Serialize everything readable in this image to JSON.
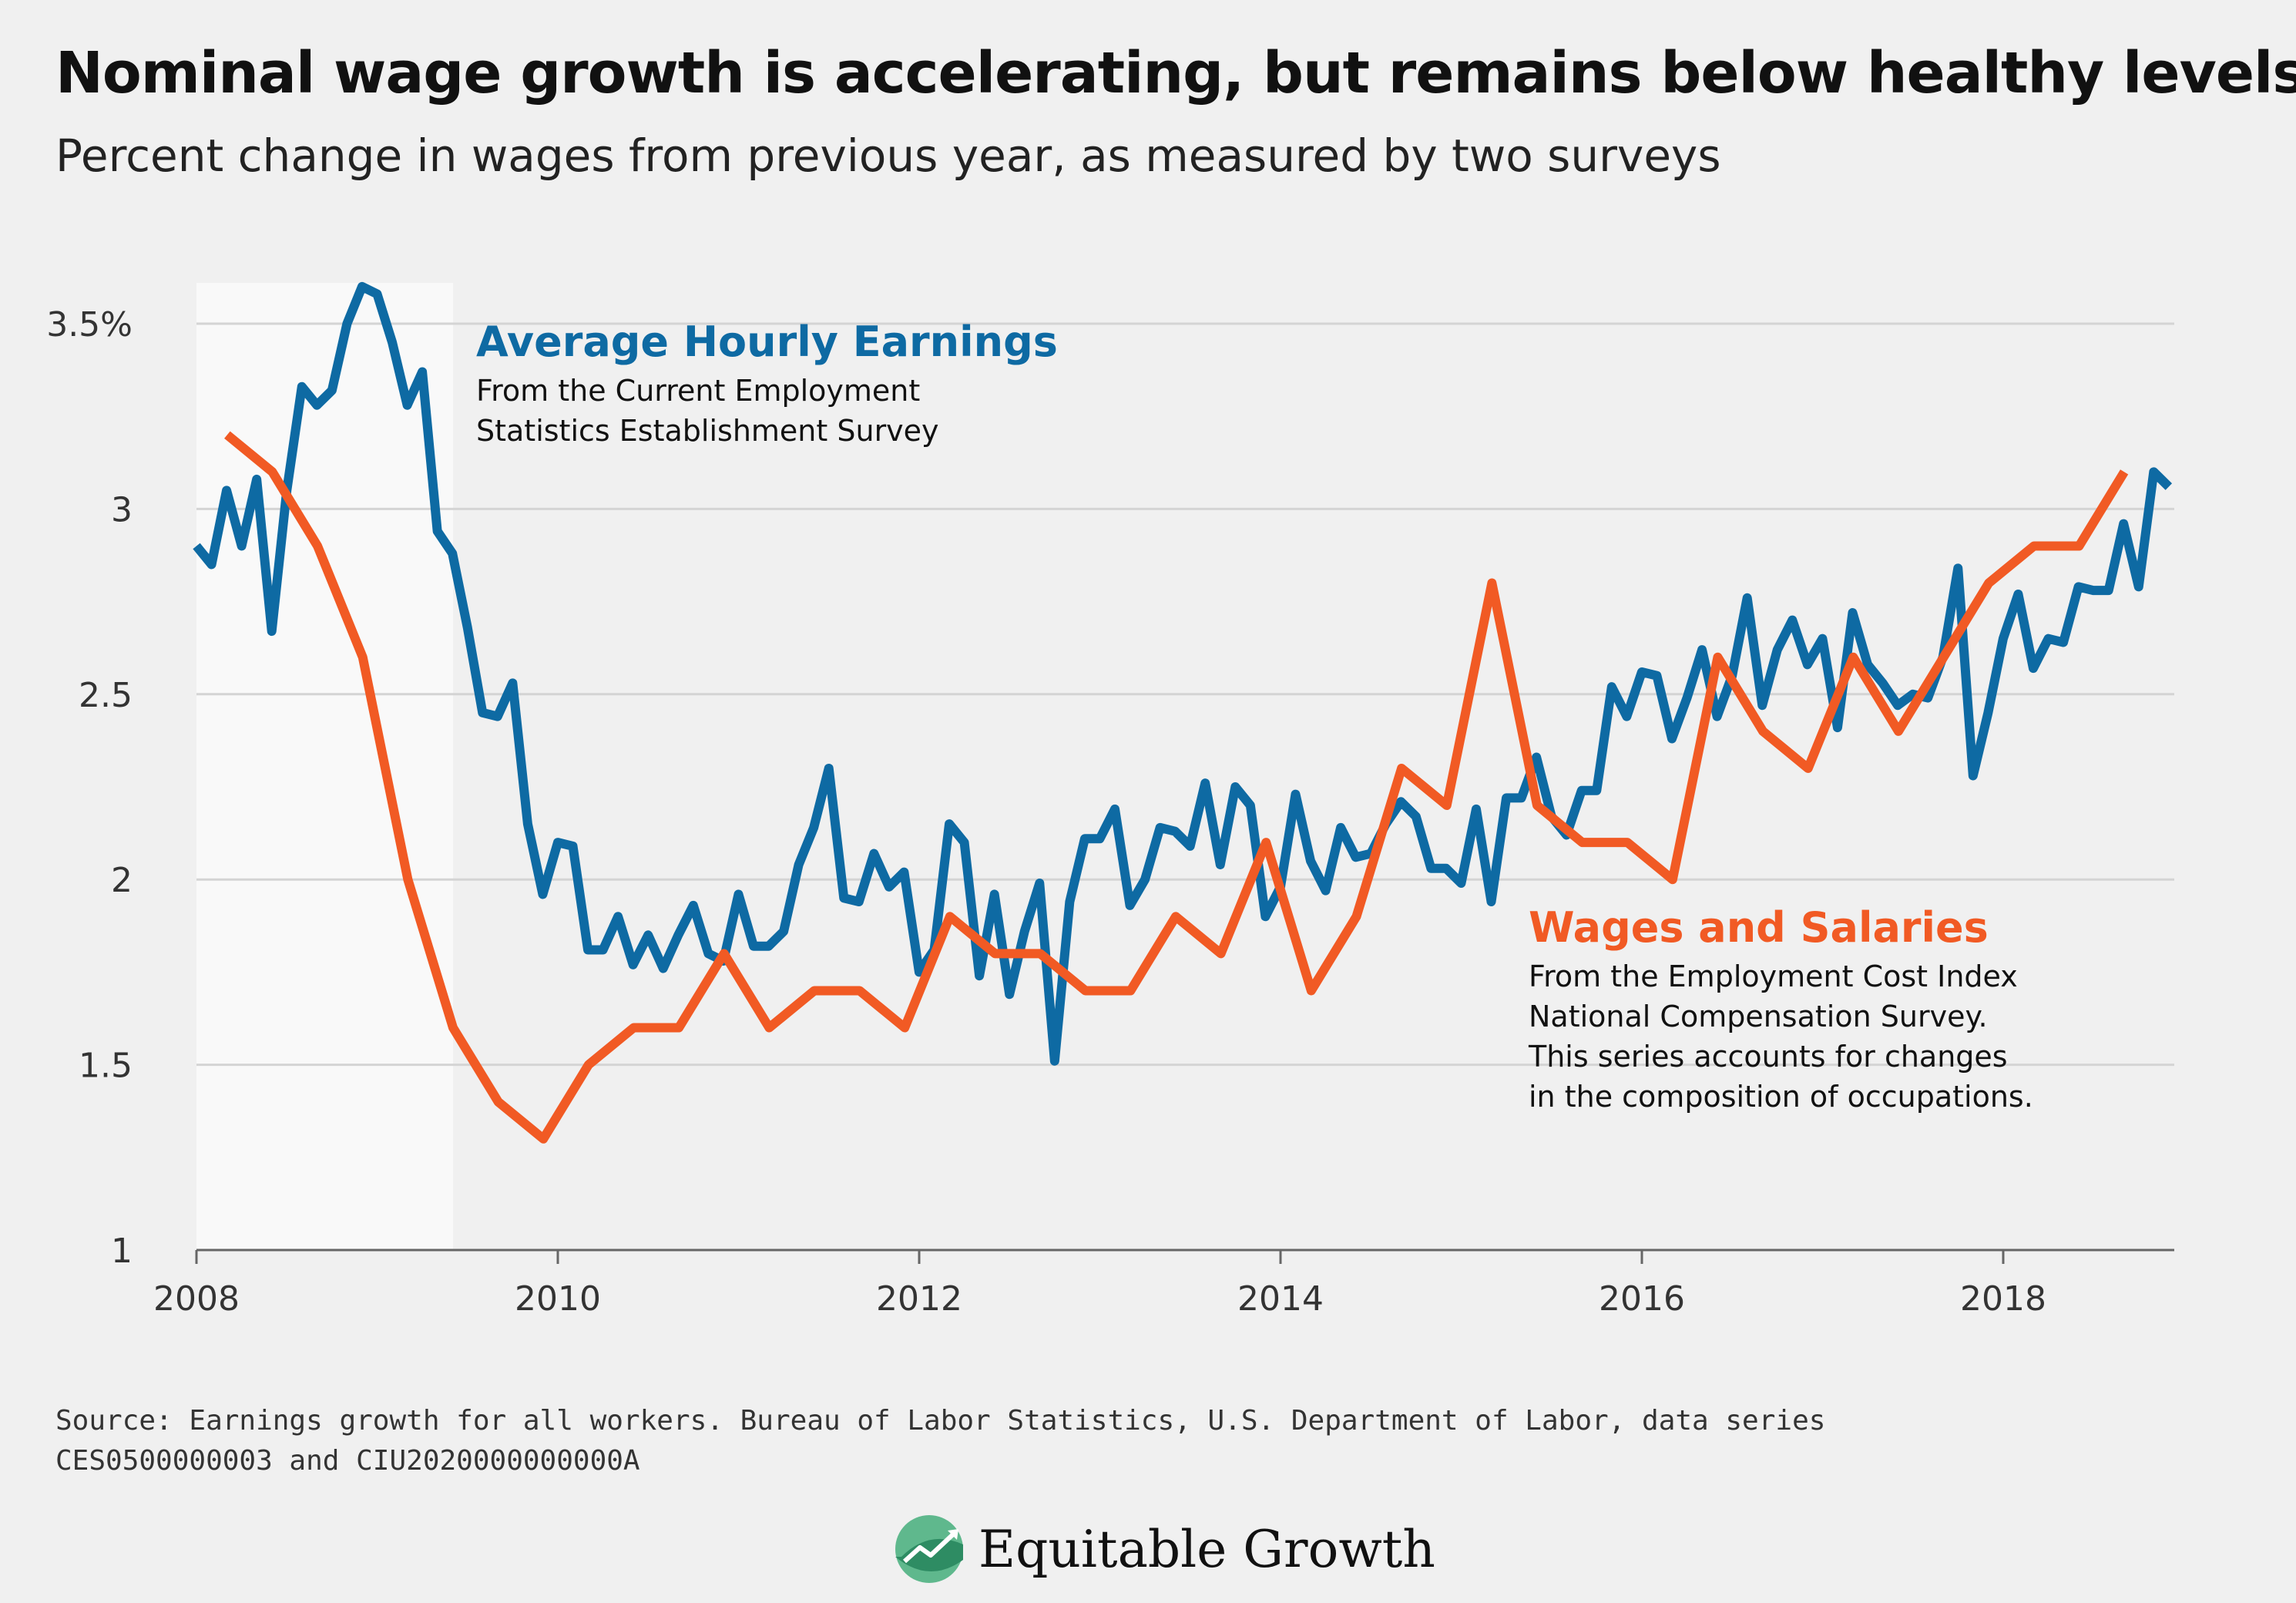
{
  "title": "Nominal wage growth is accelerating, but remains below healthy levels",
  "subtitle": "Percent change in wages from previous year, as measured by two surveys",
  "source": "Source: Earnings growth for all workers. Bureau of Labor Statistics, U.S. Department of Labor, data series CES0500000003 and CIU2020000000000A",
  "logo_text": "Equitable Growth",
  "colors": {
    "ahe": "#0e6aa3",
    "wages": "#f15a24",
    "recession_shade": "#f9f9f9",
    "grid": "#d4d4d4"
  },
  "annotations": {
    "ahe_label": "Average Hourly Earnings",
    "ahe_note": [
      "From the Current Employment",
      "Statistics Establishment Survey"
    ],
    "wages_label": "Wages and Salaries",
    "wages_note": [
      "From the Employment Cost Index",
      "National Compensation Survey.",
      "This series accounts for changes",
      "in the composition of occupations."
    ]
  },
  "chart_data": {
    "type": "line",
    "xlim": [
      2008,
      2019
    ],
    "ylim": [
      1,
      3.6
    ],
    "x_ticks": [
      2008,
      2010,
      2012,
      2014,
      2016,
      2018
    ],
    "y_ticks": [
      {
        "value": 1,
        "label": "1"
      },
      {
        "value": 1.5,
        "label": "1.5"
      },
      {
        "value": 2,
        "label": "2"
      },
      {
        "value": 2.5,
        "label": "2.5"
      },
      {
        "value": 3,
        "label": "3"
      },
      {
        "value": 3.5,
        "label": "3.5%"
      }
    ],
    "grid": true,
    "shaded_region": [
      2008.0,
      2009.42
    ],
    "series": [
      {
        "name": "Average Hourly Earnings",
        "x_start": 2008.0,
        "step": 0.08333,
        "values": [
          2.9,
          2.85,
          3.05,
          2.9,
          3.08,
          2.67,
          3.05,
          3.33,
          3.28,
          3.32,
          3.5,
          3.6,
          3.58,
          3.45,
          3.28,
          3.37,
          2.94,
          2.88,
          2.68,
          2.45,
          2.44,
          2.53,
          2.15,
          1.96,
          2.1,
          2.09,
          1.81,
          1.81,
          1.9,
          1.77,
          1.85,
          1.76,
          1.85,
          1.93,
          1.8,
          1.78,
          1.96,
          1.82,
          1.82,
          1.86,
          2.04,
          2.14,
          2.3,
          1.95,
          1.94,
          2.07,
          1.98,
          2.02,
          1.75,
          1.81,
          2.15,
          2.1,
          1.74,
          1.96,
          1.69,
          1.86,
          1.99,
          1.51,
          1.94,
          2.11,
          2.11,
          2.19,
          1.93,
          2.0,
          2.14,
          2.13,
          2.09,
          2.26,
          2.04,
          2.25,
          2.2,
          1.9,
          1.98,
          2.23,
          2.05,
          1.97,
          2.14,
          2.06,
          2.07,
          2.15,
          2.21,
          2.17,
          2.03,
          2.03,
          1.99,
          2.19,
          1.94,
          2.22,
          2.22,
          2.33,
          2.17,
          2.12,
          2.24,
          2.24,
          2.52,
          2.44,
          2.56,
          2.55,
          2.38,
          2.49,
          2.62,
          2.44,
          2.55,
          2.76,
          2.47,
          2.62,
          2.7,
          2.58,
          2.65,
          2.41,
          2.72,
          2.58,
          2.53,
          2.47,
          2.5,
          2.49,
          2.6,
          2.84,
          2.28,
          2.45,
          2.65,
          2.77,
          2.57,
          2.65,
          2.64,
          2.79,
          2.78,
          2.78,
          2.96,
          2.79,
          3.1,
          3.06
        ]
      },
      {
        "name": "Wages and Salaries",
        "x": [
          2008.17,
          2008.42,
          2008.67,
          2008.92,
          2009.17,
          2009.42,
          2009.67,
          2009.92,
          2010.17,
          2010.42,
          2010.67,
          2010.92,
          2011.17,
          2011.42,
          2011.67,
          2011.92,
          2012.17,
          2012.42,
          2012.67,
          2012.92,
          2013.17,
          2013.42,
          2013.67,
          2013.92,
          2014.17,
          2014.42,
          2014.67,
          2014.92,
          2015.17,
          2015.42,
          2015.67,
          2015.92,
          2016.17,
          2016.42,
          2016.67,
          2016.92,
          2017.17,
          2017.42,
          2017.67,
          2017.92,
          2018.17,
          2018.42,
          2018.67
        ],
        "values": [
          3.2,
          3.1,
          2.9,
          2.6,
          2.0,
          1.6,
          1.4,
          1.3,
          1.5,
          1.6,
          1.6,
          1.8,
          1.6,
          1.7,
          1.7,
          1.6,
          1.9,
          1.8,
          1.8,
          1.7,
          1.7,
          1.9,
          1.8,
          2.1,
          1.7,
          1.9,
          2.3,
          2.2,
          2.8,
          2.2,
          2.1,
          2.1,
          2.0,
          2.6,
          2.4,
          2.3,
          2.6,
          2.4,
          2.6,
          2.8,
          2.9,
          2.9,
          3.1
        ]
      }
    ]
  }
}
